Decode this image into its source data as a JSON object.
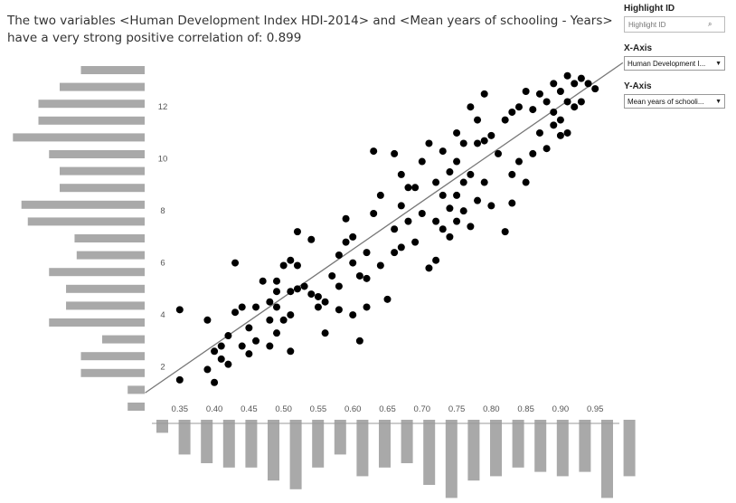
{
  "title": "The two variables <Human Development Index HDI-2014> and <Mean years of schooling - Years> have a very strong positive correlation of: 0.899",
  "controls": {
    "highlight": {
      "label": "Highlight ID",
      "placeholder": "Highlight ID",
      "icon": "search-icon"
    },
    "x_axis": {
      "label": "X-Axis",
      "value": "Human Development I...",
      "icon": "dropdown-arrow-icon"
    },
    "y_axis": {
      "label": "Y-Axis",
      "value": "Mean years of schooli...",
      "icon": "dropdown-arrow-icon"
    }
  },
  "chart_data": {
    "type": "scatter",
    "xlim": [
      0.315,
      0.985
    ],
    "ylim": [
      0.8,
      13.4
    ],
    "x_ticks": [
      "0.35",
      "0.40",
      "0.45",
      "0.50",
      "0.55",
      "0.60",
      "0.65",
      "0.70",
      "0.75",
      "0.80",
      "0.85",
      "0.90",
      "0.95"
    ],
    "x_tick_values": [
      0.35,
      0.4,
      0.45,
      0.5,
      0.55,
      0.6,
      0.65,
      0.7,
      0.75,
      0.8,
      0.85,
      0.9,
      0.95
    ],
    "y_ticks": [
      "2",
      "4",
      "6",
      "8",
      "10",
      "12"
    ],
    "y_tick_values": [
      2,
      4,
      6,
      8,
      10,
      12
    ],
    "grid": false,
    "trend_line": {
      "x": [
        0.3,
        0.99
      ],
      "y": [
        1.0,
        13.7
      ]
    },
    "points": [
      [
        0.35,
        4.2
      ],
      [
        0.35,
        1.5
      ],
      [
        0.39,
        3.8
      ],
      [
        0.39,
        1.9
      ],
      [
        0.4,
        2.6
      ],
      [
        0.4,
        1.4
      ],
      [
        0.41,
        2.8
      ],
      [
        0.41,
        2.3
      ],
      [
        0.42,
        3.2
      ],
      [
        0.42,
        2.1
      ],
      [
        0.43,
        4.1
      ],
      [
        0.43,
        6.0
      ],
      [
        0.44,
        4.3
      ],
      [
        0.44,
        2.8
      ],
      [
        0.45,
        3.5
      ],
      [
        0.45,
        2.5
      ],
      [
        0.46,
        4.3
      ],
      [
        0.46,
        3.0
      ],
      [
        0.47,
        5.3
      ],
      [
        0.48,
        4.5
      ],
      [
        0.48,
        3.8
      ],
      [
        0.48,
        2.8
      ],
      [
        0.49,
        5.3
      ],
      [
        0.49,
        4.9
      ],
      [
        0.49,
        4.3
      ],
      [
        0.49,
        3.3
      ],
      [
        0.5,
        3.8
      ],
      [
        0.5,
        5.9
      ],
      [
        0.51,
        6.1
      ],
      [
        0.51,
        4.9
      ],
      [
        0.51,
        4.0
      ],
      [
        0.51,
        2.6
      ],
      [
        0.52,
        7.2
      ],
      [
        0.52,
        5.9
      ],
      [
        0.52,
        5.0
      ],
      [
        0.53,
        5.1
      ],
      [
        0.54,
        4.8
      ],
      [
        0.54,
        6.9
      ],
      [
        0.55,
        4.7
      ],
      [
        0.55,
        4.3
      ],
      [
        0.56,
        4.5
      ],
      [
        0.56,
        3.3
      ],
      [
        0.57,
        5.5
      ],
      [
        0.58,
        5.1
      ],
      [
        0.58,
        4.2
      ],
      [
        0.58,
        6.3
      ],
      [
        0.59,
        6.8
      ],
      [
        0.59,
        7.7
      ],
      [
        0.6,
        7.0
      ],
      [
        0.6,
        6.0
      ],
      [
        0.6,
        4.0
      ],
      [
        0.61,
        5.5
      ],
      [
        0.61,
        3.0
      ],
      [
        0.62,
        5.4
      ],
      [
        0.62,
        6.4
      ],
      [
        0.62,
        4.3
      ],
      [
        0.63,
        10.3
      ],
      [
        0.63,
        7.9
      ],
      [
        0.64,
        5.9
      ],
      [
        0.64,
        8.6
      ],
      [
        0.65,
        4.6
      ],
      [
        0.66,
        10.2
      ],
      [
        0.66,
        7.3
      ],
      [
        0.66,
        6.4
      ],
      [
        0.67,
        9.4
      ],
      [
        0.67,
        8.2
      ],
      [
        0.67,
        6.6
      ],
      [
        0.68,
        8.9
      ],
      [
        0.68,
        7.6
      ],
      [
        0.69,
        8.9
      ],
      [
        0.69,
        6.8
      ],
      [
        0.7,
        9.9
      ],
      [
        0.7,
        7.9
      ],
      [
        0.71,
        10.6
      ],
      [
        0.71,
        5.8
      ],
      [
        0.72,
        9.1
      ],
      [
        0.72,
        7.6
      ],
      [
        0.72,
        6.1
      ],
      [
        0.73,
        10.3
      ],
      [
        0.73,
        8.6
      ],
      [
        0.73,
        7.3
      ],
      [
        0.74,
        9.5
      ],
      [
        0.74,
        8.1
      ],
      [
        0.74,
        7.0
      ],
      [
        0.75,
        11.0
      ],
      [
        0.75,
        9.9
      ],
      [
        0.75,
        8.6
      ],
      [
        0.75,
        7.6
      ],
      [
        0.76,
        10.6
      ],
      [
        0.76,
        9.1
      ],
      [
        0.76,
        8.0
      ],
      [
        0.77,
        12.0
      ],
      [
        0.77,
        9.4
      ],
      [
        0.77,
        7.4
      ],
      [
        0.78,
        11.5
      ],
      [
        0.78,
        10.6
      ],
      [
        0.78,
        8.4
      ],
      [
        0.79,
        12.5
      ],
      [
        0.79,
        10.7
      ],
      [
        0.79,
        9.1
      ],
      [
        0.8,
        10.9
      ],
      [
        0.8,
        8.2
      ],
      [
        0.81,
        10.2
      ],
      [
        0.82,
        11.5
      ],
      [
        0.82,
        7.2
      ],
      [
        0.83,
        11.8
      ],
      [
        0.83,
        9.4
      ],
      [
        0.83,
        8.3
      ],
      [
        0.84,
        12.0
      ],
      [
        0.84,
        9.9
      ],
      [
        0.85,
        12.6
      ],
      [
        0.85,
        9.1
      ],
      [
        0.86,
        11.9
      ],
      [
        0.86,
        10.2
      ],
      [
        0.87,
        12.5
      ],
      [
        0.87,
        11.0
      ],
      [
        0.88,
        12.2
      ],
      [
        0.88,
        10.4
      ],
      [
        0.89,
        12.9
      ],
      [
        0.89,
        11.8
      ],
      [
        0.89,
        11.3
      ],
      [
        0.9,
        12.6
      ],
      [
        0.9,
        11.5
      ],
      [
        0.9,
        10.9
      ],
      [
        0.91,
        13.2
      ],
      [
        0.91,
        12.2
      ],
      [
        0.91,
        11.0
      ],
      [
        0.92,
        12.9
      ],
      [
        0.92,
        12.0
      ],
      [
        0.93,
        13.1
      ],
      [
        0.93,
        12.2
      ],
      [
        0.94,
        12.9
      ],
      [
        0.95,
        12.7
      ]
    ],
    "y_marginal_histogram": [
      30,
      40,
      50,
      50,
      62,
      45,
      40,
      40,
      58,
      55,
      33,
      32,
      45,
      37,
      37,
      45,
      20,
      30,
      30,
      8,
      8
    ],
    "x_marginal_histogram": [
      6,
      16,
      20,
      22,
      22,
      28,
      32,
      22,
      16,
      26,
      22,
      20,
      30,
      36,
      28,
      26,
      22,
      24,
      26,
      24,
      36,
      26
    ]
  }
}
